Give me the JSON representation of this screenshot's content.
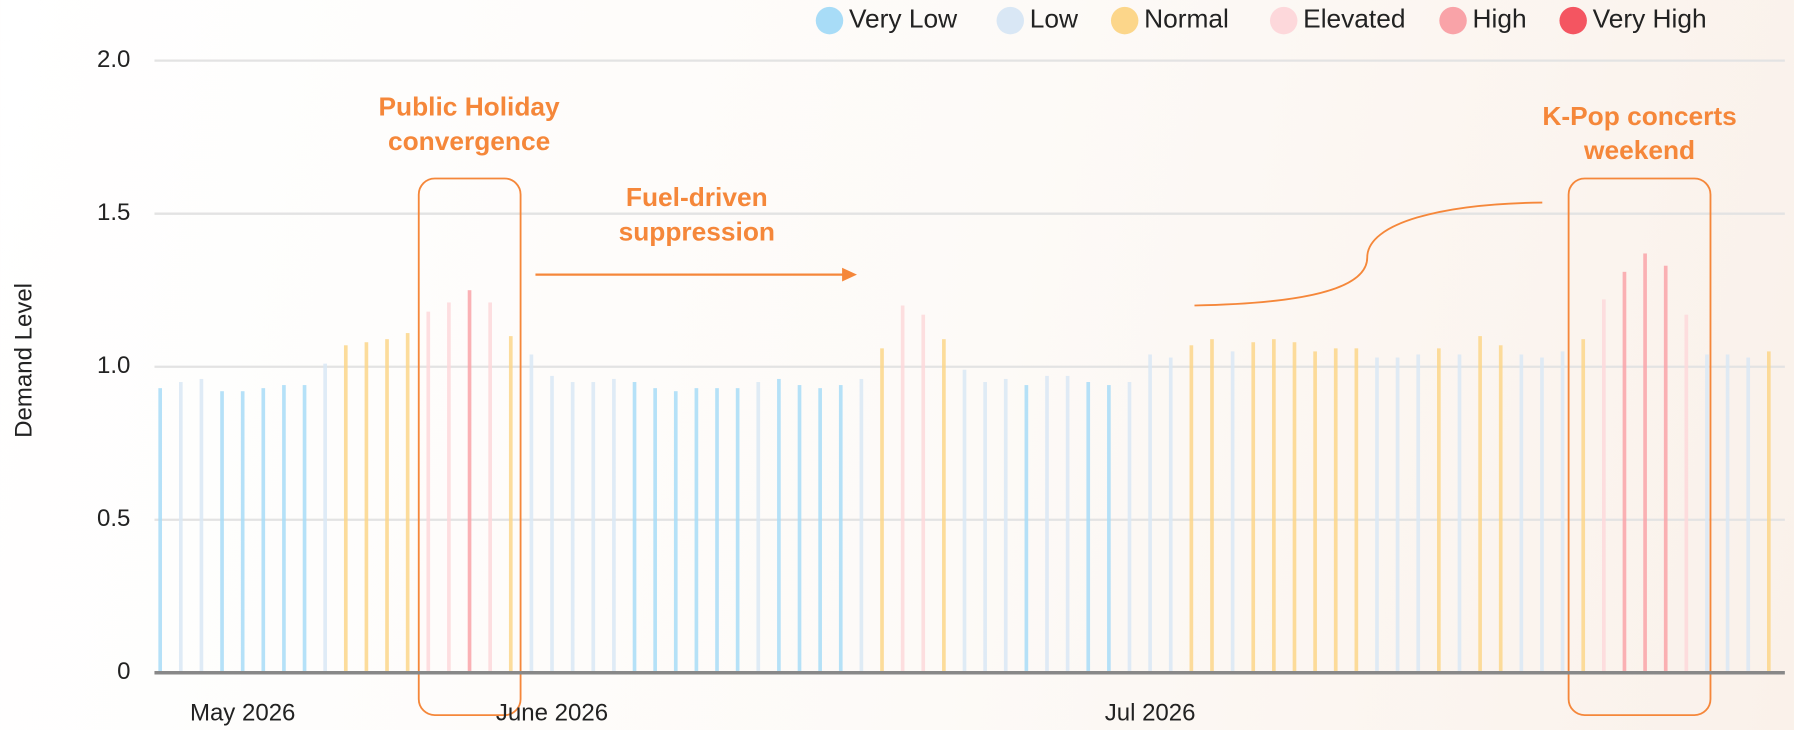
{
  "chart_data": {
    "type": "bar",
    "y_label": "Demand Level",
    "ylim": [
      0,
      2
    ],
    "yticks": [
      0,
      0.5,
      {
        "value": 1,
        "label": "1.0"
      },
      1.5,
      {
        "value": 2,
        "label": "2.0"
      }
    ],
    "grid": true,
    "legend_position": "top-right",
    "legend": [
      {
        "name": "Very Low",
        "color": "#a8dcf7"
      },
      {
        "name": "Low",
        "color": "#d9e7f5"
      },
      {
        "name": "Normal",
        "color": "#fcd68a"
      },
      {
        "name": "Elevated",
        "color": "#fdd8db"
      },
      {
        "name": "High",
        "color": "#f9a3a8"
      },
      {
        "name": "Very High",
        "color": "#f45561"
      }
    ],
    "categories": [
      null,
      null,
      null,
      null,
      "May 2026",
      null,
      null,
      null,
      null,
      null,
      null,
      null,
      null,
      null,
      null,
      null,
      null,
      null,
      null,
      "June 2026",
      null,
      null,
      null,
      null,
      null,
      null,
      null,
      null,
      null,
      null,
      null,
      null,
      null,
      null,
      null,
      null,
      null,
      null,
      null,
      null,
      null,
      null,
      null,
      null,
      null,
      null,
      null,
      null,
      "Jul 2026",
      null,
      null,
      null,
      null,
      null,
      null,
      null,
      null,
      null,
      null,
      null,
      null,
      null,
      null,
      null,
      null,
      null,
      null,
      null,
      null,
      null,
      null,
      null,
      null,
      null,
      null,
      null,
      null,
      null,
      null
    ],
    "values": [
      0.93,
      0.95,
      0.96,
      0.92,
      0.92,
      0.93,
      0.94,
      0.94,
      1.01,
      1.07,
      1.08,
      1.09,
      1.11,
      1.18,
      1.21,
      1.25,
      1.21,
      1.1,
      1.04,
      0.97,
      0.95,
      0.95,
      0.96,
      0.95,
      0.93,
      0.92,
      0.93,
      0.93,
      0.93,
      0.95,
      0.96,
      0.94,
      0.93,
      0.94,
      0.96,
      1.06,
      1.2,
      1.17,
      1.09,
      0.99,
      0.95,
      0.96,
      0.94,
      0.97,
      0.97,
      0.95,
      0.94,
      0.95,
      1.04,
      1.03,
      1.07,
      1.09,
      1.05,
      1.08,
      1.09,
      1.08,
      1.05,
      1.06,
      1.06,
      1.03,
      1.03,
      1.04,
      1.06,
      1.04,
      1.1,
      1.07,
      1.04,
      1.03,
      1.05,
      1.09,
      1.22,
      1.31,
      1.37,
      1.33,
      1.17,
      1.04,
      1.04,
      1.03,
      1.05
    ],
    "levels": [
      "Very Low",
      "Low",
      "Low",
      "Very Low",
      "Very Low",
      "Very Low",
      "Very Low",
      "Very Low",
      "Low",
      "Normal",
      "Normal",
      "Normal",
      "Normal",
      "Elevated",
      "Elevated",
      "High",
      "Elevated",
      "Normal",
      "Low",
      "Low",
      "Low",
      "Low",
      "Low",
      "Very Low",
      "Very Low",
      "Very Low",
      "Very Low",
      "Very Low",
      "Very Low",
      "Low",
      "Very Low",
      "Very Low",
      "Very Low",
      "Very Low",
      "Low",
      "Normal",
      "Elevated",
      "Elevated",
      "Normal",
      "Low",
      "Low",
      "Low",
      "Very Low",
      "Low",
      "Low",
      "Very Low",
      "Very Low",
      "Low",
      "Low",
      "Low",
      "Normal",
      "Normal",
      "Low",
      "Normal",
      "Normal",
      "Normal",
      "Normal",
      "Normal",
      "Normal",
      "Low",
      "Low",
      "Low",
      "Normal",
      "Low",
      "Normal",
      "Normal",
      "Low",
      "Low",
      "Low",
      "Normal",
      "Elevated",
      "High",
      "High",
      "High",
      "Elevated",
      "Low",
      "Low",
      "Low",
      "Normal"
    ],
    "annotations": [
      {
        "lines": [
          "Public Holiday",
          "convergence"
        ]
      },
      {
        "lines": [
          "Fuel-driven",
          "suppression"
        ]
      },
      {
        "lines": [
          "K-Pop concerts",
          "weekend"
        ]
      }
    ]
  }
}
